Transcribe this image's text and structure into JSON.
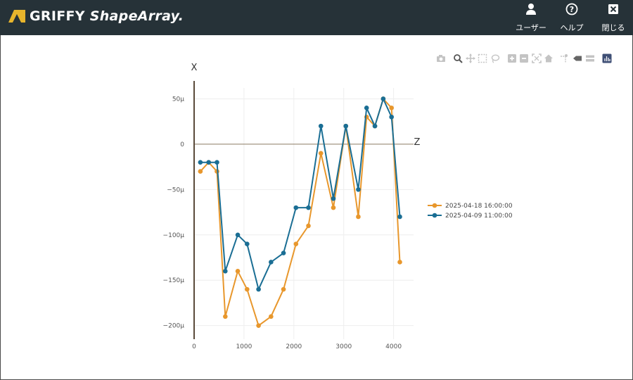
{
  "header": {
    "brand": "GRIFFY",
    "product": "ShapeArray.",
    "buttons": [
      {
        "label": "ユーザー",
        "icon": "user-icon"
      },
      {
        "label": "ヘルプ",
        "icon": "help-icon"
      },
      {
        "label": "閉じる",
        "icon": "close-icon"
      }
    ],
    "bg": "#263238"
  },
  "toolbar": [
    "camera-icon",
    "zoom-icon",
    "pan-icon",
    "box-select-icon",
    "lasso-icon",
    "zoom-in-icon",
    "zoom-out-icon",
    "autoscale-icon",
    "home-icon",
    "spike-lines-icon",
    "hover-closest-icon",
    "hover-compare-icon",
    "plotly-logo-icon"
  ],
  "chart_data": {
    "type": "line",
    "xlabel": "Z",
    "ylabel": "X",
    "x_ticks": [
      "0",
      "1000",
      "2000",
      "3000",
      "4000"
    ],
    "y_ticks": [
      "50µ",
      "0",
      "−50µ",
      "−100µ",
      "−150µ",
      "−200µ"
    ],
    "xlim": [
      0,
      4400
    ],
    "ylim": [
      -0.000215,
      6.2e-05
    ],
    "legend_position": "right",
    "series": [
      {
        "name": "2025-04-18 16:00:00",
        "color": "#e8972c",
        "x": [
          125,
          292,
          458,
          625,
          875,
          1062,
          1292,
          1542,
          1792,
          2042,
          2292,
          2542,
          2792,
          3042,
          3292,
          3458,
          3625,
          3792,
          3958,
          4125
        ],
        "y": [
          -3e-05,
          -2e-05,
          -3e-05,
          -0.00019,
          -0.00014,
          -0.00016,
          -0.0002,
          -0.00019,
          -0.00016,
          -0.00011,
          -9e-05,
          -1e-05,
          -7e-05,
          2e-05,
          -8e-05,
          3e-05,
          2e-05,
          5e-05,
          4e-05,
          -0.00013
        ]
      },
      {
        "name": "2025-04-09 11:00:00",
        "color": "#1a6e94",
        "x": [
          125,
          292,
          458,
          625,
          875,
          1062,
          1292,
          1542,
          1792,
          2042,
          2292,
          2542,
          2792,
          3042,
          3292,
          3458,
          3625,
          3792,
          3958,
          4125
        ],
        "y": [
          -2e-05,
          -2e-05,
          -2e-05,
          -0.00014,
          -0.0001,
          -0.00011,
          -0.00016,
          -0.00013,
          -0.00012,
          -7e-05,
          -7e-05,
          2e-05,
          -6e-05,
          2e-05,
          -5e-05,
          4e-05,
          2e-05,
          5e-05,
          3e-05,
          -8e-05
        ]
      }
    ]
  }
}
